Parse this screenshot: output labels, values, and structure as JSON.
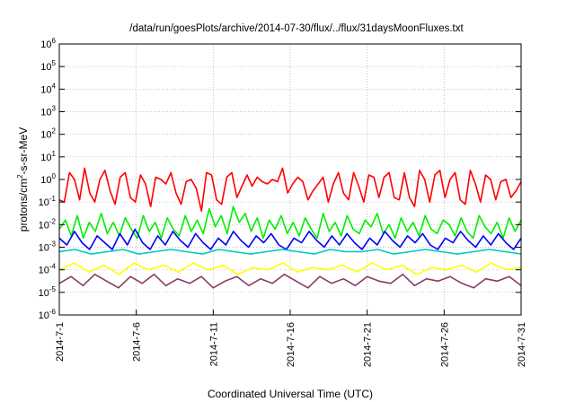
{
  "chart_data": {
    "type": "line",
    "title": "/data/run/goesPlots/archive/2014-07-30/flux/../flux/31daysMoonFluxes.txt",
    "xlabel": "Coordinated Universal Time (UTC)",
    "ylabel": "protons/cm²-s-sr-MeV",
    "ylabel_parts": [
      "protons/cm",
      "2",
      "-s-sr-MeV"
    ],
    "y_scale": "log",
    "ylim_exponents": [
      -6,
      6
    ],
    "y_tick_base": "10",
    "y_tick_exponents": [
      "-6",
      "-5",
      "-4",
      "-3",
      "-2",
      "-1",
      "0",
      "1",
      "2",
      "3",
      "4",
      "5",
      "6"
    ],
    "x_range_days": [
      1,
      31
    ],
    "x_ticks": [
      {
        "day": 1,
        "label": "2014-7-1"
      },
      {
        "day": 6,
        "label": "2014-7-6"
      },
      {
        "day": 11,
        "label": "2014-7-11"
      },
      {
        "day": 16,
        "label": "2014-7-16"
      },
      {
        "day": 21,
        "label": "2014-7-21"
      },
      {
        "day": 26,
        "label": "2014-7-26"
      },
      {
        "day": 31,
        "label": "2014-7-31"
      }
    ],
    "grid": true,
    "legend": "none",
    "series": [
      {
        "color": "#ff0000",
        "log_values": [
          -0.9,
          -1.0,
          0.3,
          0.0,
          -0.9,
          0.5,
          -0.6,
          -1.0,
          0.0,
          0.4,
          -0.5,
          -1.1,
          0.1,
          0.3,
          -0.8,
          -1.0,
          0.2,
          -0.2,
          -1.2,
          0.1,
          0.0,
          -0.2,
          0.3,
          -0.6,
          -1.1,
          -0.1,
          0.0,
          -0.4,
          -1.4,
          0.3,
          0.2,
          -0.9,
          -1.1,
          0.1,
          0.3,
          -0.8,
          -0.3,
          0.2,
          -0.3,
          0.1,
          -0.1,
          -0.2,
          0.0,
          -0.1,
          0.5,
          -0.6,
          -0.2,
          0.1,
          -0.1,
          -0.9,
          -0.5,
          -0.2,
          0.1,
          -1.0,
          -0.2,
          0.3,
          -0.6,
          -0.9,
          0.3,
          -0.3,
          -1.0,
          0.2,
          0.1,
          -0.8,
          0.1,
          0.3,
          -0.8,
          -0.9,
          0.3,
          -0.8,
          -1.2,
          0.4,
          0.0,
          -1.0,
          0.2,
          0.4,
          -0.8,
          0.0,
          0.3,
          -0.9,
          -1.1,
          0.4,
          -0.2,
          -1.0,
          0.2,
          0.0,
          -0.9,
          -0.1,
          0.0,
          -0.8,
          -0.5,
          -0.1
        ]
      },
      {
        "color": "#00ee00",
        "log_values": [
          -2.2,
          -1.8,
          -2.5,
          -1.6,
          -2.6,
          -1.9,
          -2.3,
          -1.5,
          -2.4,
          -1.9,
          -2.5,
          -1.7,
          -2.2,
          -2.6,
          -1.6,
          -2.3,
          -1.9,
          -2.6,
          -1.7,
          -2.2,
          -2.5,
          -1.6,
          -2.3,
          -1.8,
          -2.4,
          -1.3,
          -2.1,
          -1.6,
          -2.4,
          -1.2,
          -1.9,
          -1.5,
          -2.3,
          -1.7,
          -2.6,
          -1.8,
          -2.2,
          -1.6,
          -2.4,
          -1.9,
          -2.5,
          -1.7,
          -2.2,
          -2.6,
          -1.5,
          -2.3,
          -1.9,
          -2.5,
          -1.6,
          -2.2,
          -2.4,
          -1.8,
          -2.1,
          -1.5,
          -2.4,
          -2.0,
          -2.6,
          -1.7,
          -2.3,
          -1.9,
          -2.5,
          -1.6,
          -2.2,
          -2.4,
          -1.8,
          -2.0,
          -2.5,
          -1.7,
          -2.3,
          -2.6,
          -1.6,
          -2.1,
          -2.4,
          -1.9,
          -2.6,
          -1.7,
          -2.3,
          -1.8
        ]
      },
      {
        "color": "#0000ff",
        "log_values": [
          -2.6,
          -2.9,
          -2.3,
          -2.8,
          -3.1,
          -2.5,
          -2.8,
          -3.1,
          -2.4,
          -2.9,
          -2.2,
          -2.8,
          -3.1,
          -2.5,
          -2.9,
          -2.3,
          -2.7,
          -3.0,
          -2.4,
          -2.8,
          -3.1,
          -2.6,
          -2.9,
          -2.3,
          -2.7,
          -3.0,
          -2.5,
          -2.8,
          -2.4,
          -2.9,
          -3.1,
          -2.6,
          -2.8,
          -2.3,
          -2.7,
          -3.0,
          -2.5,
          -2.9,
          -2.4,
          -2.8,
          -3.1,
          -2.6,
          -2.9,
          -2.3,
          -2.7,
          -3.0,
          -2.5,
          -2.8,
          -2.4,
          -2.9,
          -3.1,
          -2.6,
          -2.8,
          -2.3,
          -2.7,
          -3.0,
          -2.5,
          -2.9,
          -2.4,
          -2.8,
          -3.1,
          -2.6
        ]
      },
      {
        "color": "#00c8c8",
        "log_values": [
          -3.2,
          -3.1,
          -3.3,
          -3.2,
          -3.1,
          -3.3,
          -3.2,
          -3.1,
          -3.2,
          -3.3,
          -3.1,
          -3.2,
          -3.3,
          -3.2,
          -3.1,
          -3.2,
          -3.3,
          -3.1,
          -3.2,
          -3.2,
          -3.1,
          -3.3,
          -3.2,
          -3.1,
          -3.2,
          -3.3,
          -3.2,
          -3.1,
          -3.2,
          -3.3
        ]
      },
      {
        "color": "#ffff00",
        "log_values": [
          -4.0,
          -3.7,
          -4.1,
          -3.8,
          -4.2,
          -3.7,
          -4.0,
          -3.8,
          -4.1,
          -3.7,
          -4.0,
          -3.8,
          -4.2,
          -3.9,
          -4.0,
          -3.7,
          -4.1,
          -3.9,
          -4.0,
          -3.8,
          -4.1,
          -3.7,
          -4.0,
          -3.8,
          -4.2,
          -3.9,
          -4.0,
          -3.8,
          -4.1,
          -3.7,
          -4.0,
          -3.9
        ]
      },
      {
        "color": "#8b3a62",
        "log_values": [
          -4.6,
          -4.3,
          -4.7,
          -4.2,
          -4.5,
          -4.8,
          -4.3,
          -4.6,
          -4.2,
          -4.7,
          -4.4,
          -4.6,
          -4.3,
          -4.8,
          -4.5,
          -4.3,
          -4.7,
          -4.4,
          -4.6,
          -4.2,
          -4.5,
          -4.8,
          -4.3,
          -4.6,
          -4.4,
          -4.7,
          -4.3,
          -4.5,
          -4.6,
          -4.2,
          -4.7,
          -4.4,
          -4.5,
          -4.3,
          -4.6,
          -4.8,
          -4.4,
          -4.5,
          -4.3,
          -4.7
        ]
      }
    ]
  }
}
